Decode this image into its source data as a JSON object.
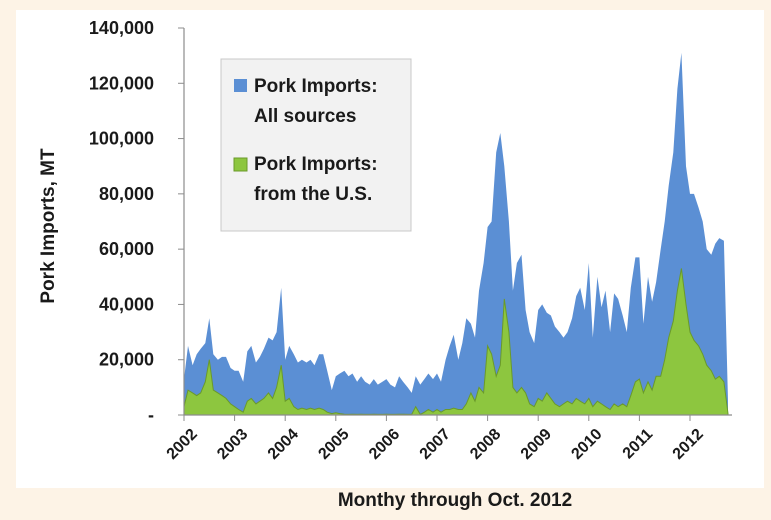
{
  "chart_data": {
    "type": "area",
    "title": "",
    "xlabel": "Monthy through Oct. 2012",
    "ylabel": "Pork Imports, MT",
    "xlim": [
      2002,
      2012.83
    ],
    "ylim": [
      0,
      140000
    ],
    "x_tick_labels": [
      "2002",
      "2003",
      "2004",
      "2005",
      "2006",
      "2007",
      "2008",
      "2009",
      "2010",
      "2011",
      "2012"
    ],
    "y_tick_labels": [
      "-",
      "20,000",
      "40,000",
      "60,000",
      "80,000",
      "100,000",
      "120,000",
      "140,000"
    ],
    "y_tick_values": [
      0,
      20000,
      40000,
      60000,
      80000,
      100000,
      120000,
      140000
    ],
    "legend_position": "top-left",
    "colors": {
      "all": "#5b8fd4",
      "us": "#8dc63f",
      "us_edge": "#6a9a2a",
      "axis": "#8c8c8c"
    },
    "series": [
      {
        "name": "Pork Imports: All sources",
        "points": [
          [
            2002.0,
            13000
          ],
          [
            2002.08,
            25000
          ],
          [
            2002.17,
            18000
          ],
          [
            2002.25,
            22000
          ],
          [
            2002.33,
            24000
          ],
          [
            2002.42,
            26000
          ],
          [
            2002.5,
            35000
          ],
          [
            2002.58,
            22000
          ],
          [
            2002.67,
            20000
          ],
          [
            2002.75,
            21000
          ],
          [
            2002.83,
            21000
          ],
          [
            2002.92,
            17000
          ],
          [
            2003.0,
            16000
          ],
          [
            2003.08,
            16000
          ],
          [
            2003.17,
            12000
          ],
          [
            2003.25,
            23000
          ],
          [
            2003.33,
            25000
          ],
          [
            2003.42,
            19000
          ],
          [
            2003.5,
            21000
          ],
          [
            2003.58,
            24000
          ],
          [
            2003.67,
            28000
          ],
          [
            2003.75,
            27000
          ],
          [
            2003.83,
            30000
          ],
          [
            2003.92,
            46000
          ],
          [
            2004.0,
            20000
          ],
          [
            2004.08,
            25000
          ],
          [
            2004.17,
            22000
          ],
          [
            2004.25,
            19000
          ],
          [
            2004.33,
            20000
          ],
          [
            2004.42,
            19000
          ],
          [
            2004.5,
            20000
          ],
          [
            2004.58,
            18000
          ],
          [
            2004.67,
            22000
          ],
          [
            2004.75,
            22000
          ],
          [
            2004.83,
            16000
          ],
          [
            2004.92,
            9000
          ],
          [
            2005.0,
            14000
          ],
          [
            2005.08,
            15000
          ],
          [
            2005.17,
            16000
          ],
          [
            2005.25,
            14000
          ],
          [
            2005.33,
            15000
          ],
          [
            2005.42,
            12000
          ],
          [
            2005.5,
            14000
          ],
          [
            2005.58,
            12000
          ],
          [
            2005.67,
            11000
          ],
          [
            2005.75,
            13000
          ],
          [
            2005.83,
            11000
          ],
          [
            2005.92,
            12000
          ],
          [
            2006.0,
            13000
          ],
          [
            2006.08,
            11000
          ],
          [
            2006.17,
            10000
          ],
          [
            2006.25,
            14000
          ],
          [
            2006.33,
            12000
          ],
          [
            2006.42,
            10000
          ],
          [
            2006.5,
            8000
          ],
          [
            2006.58,
            14000
          ],
          [
            2006.67,
            11000
          ],
          [
            2006.75,
            13000
          ],
          [
            2006.83,
            15000
          ],
          [
            2006.92,
            13000
          ],
          [
            2007.0,
            15000
          ],
          [
            2007.08,
            12000
          ],
          [
            2007.17,
            20000
          ],
          [
            2007.25,
            25000
          ],
          [
            2007.33,
            29000
          ],
          [
            2007.42,
            20000
          ],
          [
            2007.5,
            26000
          ],
          [
            2007.58,
            35000
          ],
          [
            2007.67,
            33000
          ],
          [
            2007.75,
            28000
          ],
          [
            2007.83,
            45000
          ],
          [
            2007.92,
            55000
          ],
          [
            2008.0,
            68000
          ],
          [
            2008.08,
            70000
          ],
          [
            2008.17,
            95000
          ],
          [
            2008.25,
            102000
          ],
          [
            2008.33,
            90000
          ],
          [
            2008.42,
            70000
          ],
          [
            2008.5,
            45000
          ],
          [
            2008.58,
            55000
          ],
          [
            2008.67,
            58000
          ],
          [
            2008.75,
            38000
          ],
          [
            2008.83,
            30000
          ],
          [
            2008.92,
            26000
          ],
          [
            2009.0,
            38000
          ],
          [
            2009.08,
            40000
          ],
          [
            2009.17,
            37000
          ],
          [
            2009.25,
            36000
          ],
          [
            2009.33,
            32000
          ],
          [
            2009.42,
            30000
          ],
          [
            2009.5,
            28000
          ],
          [
            2009.58,
            30000
          ],
          [
            2009.67,
            35000
          ],
          [
            2009.75,
            43000
          ],
          [
            2009.83,
            46000
          ],
          [
            2009.92,
            38000
          ],
          [
            2010.0,
            55000
          ],
          [
            2010.08,
            28000
          ],
          [
            2010.17,
            50000
          ],
          [
            2010.25,
            39000
          ],
          [
            2010.33,
            45000
          ],
          [
            2010.42,
            30000
          ],
          [
            2010.5,
            44000
          ],
          [
            2010.58,
            42000
          ],
          [
            2010.67,
            36000
          ],
          [
            2010.75,
            30000
          ],
          [
            2010.83,
            46000
          ],
          [
            2010.92,
            57000
          ],
          [
            2011.0,
            57000
          ],
          [
            2011.08,
            33000
          ],
          [
            2011.17,
            50000
          ],
          [
            2011.25,
            41000
          ],
          [
            2011.33,
            48000
          ],
          [
            2011.42,
            60000
          ],
          [
            2011.5,
            70000
          ],
          [
            2011.58,
            83000
          ],
          [
            2011.67,
            95000
          ],
          [
            2011.75,
            118000
          ],
          [
            2011.83,
            131000
          ],
          [
            2011.92,
            90000
          ],
          [
            2012.0,
            80000
          ],
          [
            2012.08,
            80000
          ],
          [
            2012.17,
            75000
          ],
          [
            2012.25,
            70000
          ],
          [
            2012.33,
            60000
          ],
          [
            2012.42,
            58000
          ],
          [
            2012.5,
            62000
          ],
          [
            2012.58,
            64000
          ],
          [
            2012.67,
            63000
          ],
          [
            2012.75,
            5000
          ]
        ]
      },
      {
        "name": "Pork Imports: from the U.S.",
        "points": [
          [
            2002.0,
            3000
          ],
          [
            2002.08,
            9000
          ],
          [
            2002.17,
            8000
          ],
          [
            2002.25,
            7000
          ],
          [
            2002.33,
            8000
          ],
          [
            2002.42,
            12000
          ],
          [
            2002.5,
            20000
          ],
          [
            2002.58,
            9000
          ],
          [
            2002.67,
            8000
          ],
          [
            2002.75,
            7000
          ],
          [
            2002.83,
            6000
          ],
          [
            2002.92,
            4000
          ],
          [
            2003.0,
            3000
          ],
          [
            2003.08,
            2000
          ],
          [
            2003.17,
            1000
          ],
          [
            2003.25,
            5000
          ],
          [
            2003.33,
            6000
          ],
          [
            2003.42,
            4000
          ],
          [
            2003.5,
            5000
          ],
          [
            2003.58,
            6000
          ],
          [
            2003.67,
            8000
          ],
          [
            2003.75,
            6000
          ],
          [
            2003.83,
            10000
          ],
          [
            2003.92,
            18000
          ],
          [
            2004.0,
            5000
          ],
          [
            2004.08,
            6000
          ],
          [
            2004.17,
            3000
          ],
          [
            2004.25,
            2000
          ],
          [
            2004.33,
            2500
          ],
          [
            2004.42,
            2000
          ],
          [
            2004.5,
            2500
          ],
          [
            2004.58,
            2000
          ],
          [
            2004.67,
            2500
          ],
          [
            2004.75,
            2000
          ],
          [
            2004.83,
            1000
          ],
          [
            2004.92,
            500
          ],
          [
            2005.0,
            800
          ],
          [
            2005.08,
            500
          ],
          [
            2005.17,
            300
          ],
          [
            2005.25,
            200
          ],
          [
            2005.33,
            300
          ],
          [
            2005.42,
            200
          ],
          [
            2005.5,
            300
          ],
          [
            2005.58,
            200
          ],
          [
            2005.67,
            200
          ],
          [
            2005.75,
            300
          ],
          [
            2005.83,
            200
          ],
          [
            2005.92,
            200
          ],
          [
            2006.0,
            300
          ],
          [
            2006.08,
            200
          ],
          [
            2006.17,
            200
          ],
          [
            2006.25,
            300
          ],
          [
            2006.33,
            300
          ],
          [
            2006.42,
            200
          ],
          [
            2006.5,
            200
          ],
          [
            2006.58,
            3000
          ],
          [
            2006.67,
            200
          ],
          [
            2006.75,
            1000
          ],
          [
            2006.83,
            2000
          ],
          [
            2006.92,
            1000
          ],
          [
            2007.0,
            2000
          ],
          [
            2007.08,
            1000
          ],
          [
            2007.17,
            2000
          ],
          [
            2007.25,
            2000
          ],
          [
            2007.33,
            2500
          ],
          [
            2007.42,
            2000
          ],
          [
            2007.5,
            2000
          ],
          [
            2007.58,
            4000
          ],
          [
            2007.67,
            8000
          ],
          [
            2007.75,
            5000
          ],
          [
            2007.83,
            10000
          ],
          [
            2007.92,
            8000
          ],
          [
            2008.0,
            25000
          ],
          [
            2008.08,
            22000
          ],
          [
            2008.17,
            14000
          ],
          [
            2008.25,
            18000
          ],
          [
            2008.33,
            42000
          ],
          [
            2008.42,
            30000
          ],
          [
            2008.5,
            10000
          ],
          [
            2008.58,
            8000
          ],
          [
            2008.67,
            10000
          ],
          [
            2008.75,
            8000
          ],
          [
            2008.83,
            4000
          ],
          [
            2008.92,
            3000
          ],
          [
            2009.0,
            6000
          ],
          [
            2009.08,
            5000
          ],
          [
            2009.17,
            8000
          ],
          [
            2009.25,
            6000
          ],
          [
            2009.33,
            4000
          ],
          [
            2009.42,
            3000
          ],
          [
            2009.5,
            4000
          ],
          [
            2009.58,
            5000
          ],
          [
            2009.67,
            4000
          ],
          [
            2009.75,
            6000
          ],
          [
            2009.83,
            5000
          ],
          [
            2009.92,
            4000
          ],
          [
            2010.0,
            6000
          ],
          [
            2010.08,
            3000
          ],
          [
            2010.17,
            5000
          ],
          [
            2010.25,
            4000
          ],
          [
            2010.33,
            3000
          ],
          [
            2010.42,
            2000
          ],
          [
            2010.5,
            4000
          ],
          [
            2010.58,
            3000
          ],
          [
            2010.67,
            4000
          ],
          [
            2010.75,
            3000
          ],
          [
            2010.83,
            7000
          ],
          [
            2010.92,
            12000
          ],
          [
            2011.0,
            13000
          ],
          [
            2011.08,
            8000
          ],
          [
            2011.17,
            12000
          ],
          [
            2011.25,
            9000
          ],
          [
            2011.33,
            14000
          ],
          [
            2011.42,
            14000
          ],
          [
            2011.5,
            20000
          ],
          [
            2011.58,
            28000
          ],
          [
            2011.67,
            34000
          ],
          [
            2011.75,
            45000
          ],
          [
            2011.83,
            53000
          ],
          [
            2011.92,
            40000
          ],
          [
            2012.0,
            30000
          ],
          [
            2012.08,
            27000
          ],
          [
            2012.17,
            25000
          ],
          [
            2012.25,
            22000
          ],
          [
            2012.33,
            18000
          ],
          [
            2012.42,
            16000
          ],
          [
            2012.5,
            13000
          ],
          [
            2012.58,
            14000
          ],
          [
            2012.67,
            12000
          ],
          [
            2012.75,
            500
          ]
        ]
      }
    ]
  }
}
